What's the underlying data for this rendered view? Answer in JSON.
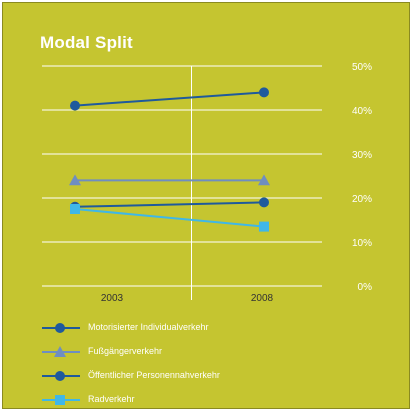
{
  "chart_data": {
    "type": "line",
    "title": "Modal Split",
    "categories": [
      "2003",
      "2008"
    ],
    "y_ticks": [
      "50%",
      "40%",
      "30%",
      "20%",
      "10%",
      "0%"
    ],
    "ylim": [
      0,
      50
    ],
    "grid": true,
    "legend_position": "bottom",
    "series": [
      {
        "name": "Motorisierter Individualverkehr",
        "values": [
          41,
          44
        ],
        "color": "#1f5a9c",
        "marker": "circle"
      },
      {
        "name": "Fußgängerverkehr",
        "values": [
          24,
          24
        ],
        "color": "#6f8ec0",
        "marker": "triangle"
      },
      {
        "name": "Öffentlicher Personennahverkehr",
        "values": [
          18,
          19
        ],
        "color": "#1f5a9c",
        "marker": "circle"
      },
      {
        "name": "Radverkehr",
        "values": [
          17.5,
          13.5
        ],
        "color": "#3fb7e8",
        "marker": "square"
      }
    ]
  },
  "colors": {
    "background": "#c5c530",
    "grid": "#ffffff",
    "text": "#ffffff"
  }
}
